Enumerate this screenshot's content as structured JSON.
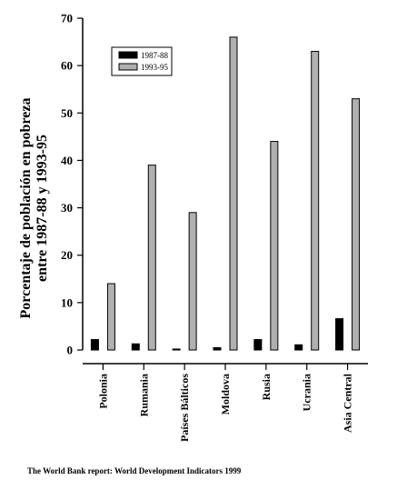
{
  "chart_data": {
    "type": "bar",
    "ylabel_lines": [
      "Porcentaje de población en pobreza",
      "entre 1987-88 y 1993-95"
    ],
    "ylim": [
      0,
      70
    ],
    "yticks": [
      "0",
      "10",
      "20",
      "30",
      "40",
      "50",
      "60",
      "70"
    ],
    "categories": [
      "Polonia",
      "Rumania",
      "Países Bálticos",
      "Moldova",
      "Rusia",
      "Ucrania",
      "Asia Central"
    ],
    "series": [
      {
        "name": "1987-88",
        "color": "#000000",
        "values": [
          2.2,
          1.3,
          0.2,
          0.5,
          2.2,
          1.1,
          6.6
        ]
      },
      {
        "name": "1993-95",
        "color": "#b0b0b0",
        "values": [
          14,
          39,
          29,
          66,
          44,
          63,
          53
        ]
      }
    ],
    "legend_position": "top-left",
    "grid": false
  },
  "source": "The World Bank report: World Development Indicators 1999"
}
